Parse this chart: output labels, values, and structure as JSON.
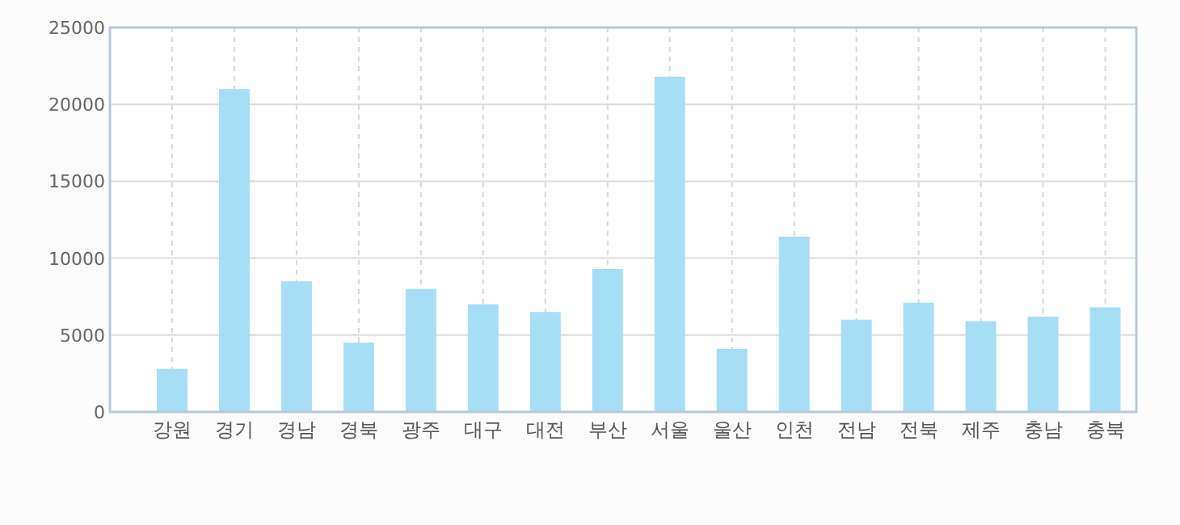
{
  "chart_data": {
    "type": "bar",
    "categories": [
      "강원",
      "경기",
      "경남",
      "경북",
      "광주",
      "대구",
      "대전",
      "부산",
      "서울",
      "울산",
      "인천",
      "전남",
      "전북",
      "제주",
      "충남",
      "충북"
    ],
    "values": [
      2800,
      21000,
      8500,
      4500,
      8000,
      7000,
      6500,
      9300,
      21800,
      4100,
      11400,
      6000,
      7100,
      5900,
      6200,
      6800
    ],
    "color": "#a8def5",
    "ylim": [
      0,
      25000
    ],
    "yticks": [
      0,
      5000,
      10000,
      15000,
      20000,
      25000
    ],
    "grid": true
  }
}
